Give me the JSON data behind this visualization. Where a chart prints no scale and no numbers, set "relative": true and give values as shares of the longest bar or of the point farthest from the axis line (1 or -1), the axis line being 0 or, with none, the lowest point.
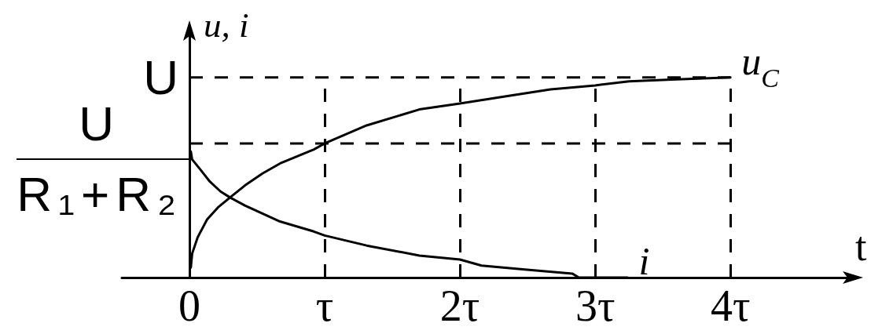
{
  "chart_data": {
    "type": "line",
    "xlabel": "t",
    "ylabel": "u, i",
    "relative": true,
    "xlim": [
      -0.5,
      4.9
    ],
    "xticks": [
      0,
      {
        "value": 1,
        "label": "τ"
      },
      {
        "value": 2,
        "label": "2τ"
      },
      {
        "value": 3,
        "label": "3τ"
      },
      {
        "value": 4,
        "label": "4τ"
      }
    ],
    "series": [
      {
        "color": "#000000",
        "x": [
          0,
          4
        ],
        "values": [
          1,
          1
        ],
        "line_style": "dashed"
      },
      {
        "color": "#000000",
        "x": [
          0,
          4
        ],
        "values": [
          0.67,
          0.67
        ],
        "line_style": "dashed"
      },
      {
        "name": "u$_{C}$",
        "color": "#000000",
        "x": [
          0.01,
          0.02,
          0.06,
          0.13,
          0.21,
          0.3,
          0.41,
          0.54,
          0.67,
          0.92,
          1,
          1.31,
          1.7,
          2,
          2.38,
          2.67,
          3,
          3.25,
          3.6,
          4
        ],
        "values": [
          0.05,
          0.12,
          0.2,
          0.29,
          0.35,
          0.4,
          0.46,
          0.52,
          0.57,
          0.64,
          0.67,
          0.76,
          0.84,
          0.87,
          0.91,
          0.94,
          0.96,
          0.98,
          0.99,
          1
        ]
      },
      {
        "name": "i",
        "color": "#000000",
        "x": [
          0.01,
          0.02,
          0.08,
          0.15,
          0.23,
          0.3,
          0.41,
          0.54,
          0.67,
          0.92,
          1,
          1.31,
          1.7,
          2,
          2.16,
          2.48,
          2.83,
          2.88,
          3.24
        ],
        "values": [
          0.63,
          0.59,
          0.54,
          0.48,
          0.43,
          0.4,
          0.36,
          0.32,
          0.28,
          0.23,
          0.21,
          0.16,
          0.11,
          0.09,
          0.06,
          0.04,
          0.02,
          0,
          0
        ]
      }
    ],
    "ref_lines": [
      {
        "axis": "x",
        "value": 1,
        "color": "#000000",
        "line_style": "dashed"
      },
      {
        "axis": "x",
        "value": 2,
        "color": "#000000",
        "line_style": "dashed"
      },
      {
        "axis": "x",
        "value": 3,
        "color": "#000000",
        "line_style": "dashed"
      },
      {
        "axis": "x",
        "value": 4,
        "color": "#000000",
        "line_style": "dashed"
      }
    ],
    "annotations": [
      {
        "text": "U",
        "x": 0,
        "y": 1
      },
      {
        "text": "U\nR₁+R₂",
        "x": 0,
        "y": 0.59
      }
    ],
    "legend": false,
    "grid": false,
    "marker": "none",
    "line_style": "solid"
  }
}
